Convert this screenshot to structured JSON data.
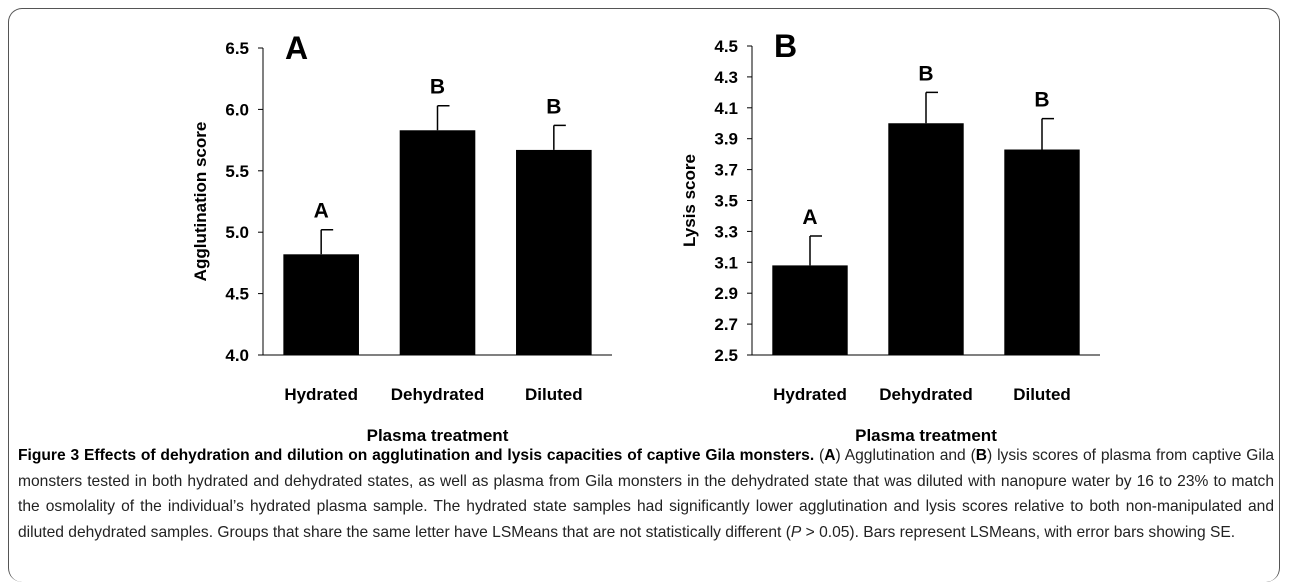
{
  "chart_data": [
    {
      "type": "bar",
      "panel_label": "A",
      "ylabel": "Agglutination score",
      "xlabel": "Plasma treatment",
      "categories": [
        "Hydrated",
        "Dehydrated",
        "Diluted"
      ],
      "values": [
        4.82,
        5.83,
        5.67
      ],
      "errors": [
        0.2,
        0.2,
        0.2
      ],
      "annotations": [
        "A",
        "B",
        "B"
      ],
      "color": "#000000",
      "ylim": [
        4,
        6.5
      ],
      "yticks": [
        {
          "value": 4,
          "label": "4.0"
        },
        {
          "value": 4.5,
          "label": "4.5"
        },
        {
          "value": 5,
          "label": "5.0"
        },
        {
          "value": 5.5,
          "label": "5.5"
        },
        {
          "value": 6,
          "label": "6.0"
        },
        {
          "value": 6.5,
          "label": "6.5"
        }
      ]
    },
    {
      "type": "bar",
      "panel_label": "B",
      "ylabel": "Lysis score",
      "xlabel": "Plasma treatment",
      "categories": [
        "Hydrated",
        "Dehydrated",
        "Diluted"
      ],
      "values": [
        3.08,
        4.0,
        3.83
      ],
      "errors": [
        0.19,
        0.2,
        0.2
      ],
      "annotations": [
        "A",
        "B",
        "B"
      ],
      "color": "#000000",
      "ylim": [
        2.5,
        4.5
      ],
      "yticks": [
        2.5,
        2.7,
        2.9,
        3.1,
        3.3,
        3.5,
        3.7,
        3.9,
        4.1,
        4.3,
        4.5
      ]
    }
  ],
  "caption": {
    "title": "Figure 3 Effects of dehydration and dilution on agglutination and lysis capacities of captive Gila monsters.",
    "parts": [
      " (",
      "A",
      ") Agglutination and (",
      "B",
      ") lysis scores of plasma from captive Gila monsters tested in both hydrated and dehydrated states, as well as plasma from Gila monsters in the dehydrated state that was diluted with nanopure water by 16 to 23% to match the osmolality of the individual’s hydrated plasma sample. The hydrated state samples had significantly lower agglutination and lysis scores relative to both non-manipulated and diluted dehydrated samples. Groups that share the same letter have LSMeans that are not statistically different (",
      "P",
      " > 0.05). Bars represent LSMeans, with error bars showing SE."
    ]
  }
}
